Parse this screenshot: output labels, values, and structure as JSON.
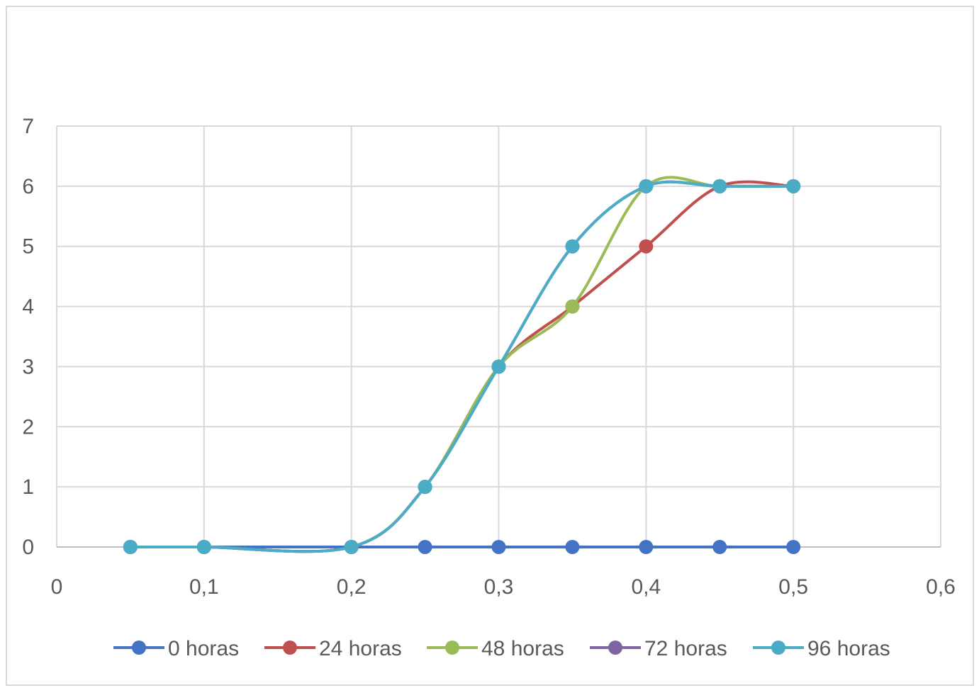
{
  "chart_data": {
    "type": "line",
    "xlim": [
      0,
      0.6
    ],
    "ylim": [
      0,
      7
    ],
    "x_ticks": [
      0,
      0.1,
      0.2,
      0.3,
      0.4,
      0.5,
      0.6
    ],
    "y_ticks": [
      0,
      1,
      2,
      3,
      4,
      5,
      6,
      7
    ],
    "x_tick_labels": [
      "0",
      "0,1",
      "0,2",
      "0,3",
      "0,4",
      "0,5",
      "0,6"
    ],
    "y_tick_labels": [
      "0",
      "1",
      "2",
      "3",
      "4",
      "5",
      "6",
      "7"
    ],
    "grid": true,
    "smooth": true,
    "legend_position": "bottom",
    "x": [
      0.05,
      0.1,
      0.2,
      0.25,
      0.3,
      0.35,
      0.4,
      0.45,
      0.5
    ],
    "series": [
      {
        "name": "0 horas",
        "color": "#4472C4",
        "values": [
          0,
          0,
          0,
          0,
          0,
          0,
          0,
          0,
          0
        ]
      },
      {
        "name": "24 horas",
        "color": "#C0504D",
        "values": [
          0,
          0,
          0,
          1,
          3,
          4,
          5,
          6,
          6
        ]
      },
      {
        "name": "48 horas",
        "color": "#9BBB59",
        "values": [
          0,
          0,
          0,
          1,
          3,
          4,
          6,
          6,
          6
        ]
      },
      {
        "name": "72 horas",
        "color": "#8064A2",
        "values": [
          0,
          0,
          0,
          1,
          3,
          5,
          6,
          6,
          6
        ]
      },
      {
        "name": "96 horas",
        "color": "#4BACC6",
        "values": [
          0,
          0,
          0,
          1,
          3,
          5,
          6,
          6,
          6
        ]
      }
    ]
  }
}
